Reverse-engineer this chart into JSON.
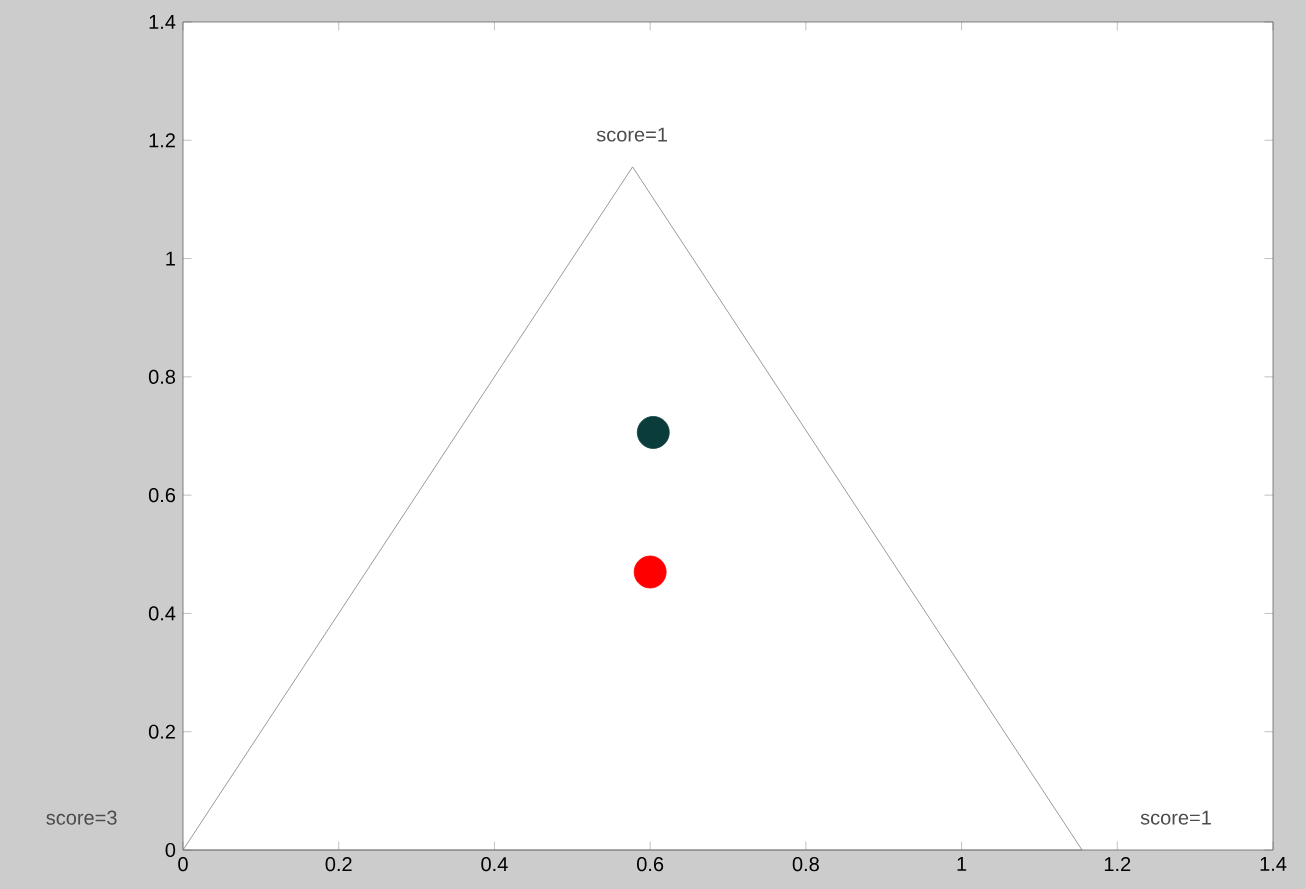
{
  "chart_data": {
    "type": "scatter",
    "series": [
      {
        "type": "line",
        "color": "#808080",
        "x": [
          0,
          0.5774
        ],
        "values": [
          0,
          1.155
        ],
        "marker": "none"
      },
      {
        "type": "line",
        "color": "#808080",
        "x": [
          0.5774,
          1.1547
        ],
        "values": [
          1.155,
          0
        ],
        "marker": "none"
      },
      {
        "type": "line",
        "color": "#808080",
        "x": [
          0,
          1.1547
        ],
        "values": [
          0,
          0
        ],
        "marker": "none"
      },
      {
        "type": "scatter",
        "color": "#0a3c3c",
        "x": [
          0.604
        ],
        "values": [
          0.706
        ],
        "marker": "circle"
      },
      {
        "type": "scatter",
        "color": "#ff0000",
        "x": [
          0.6
        ],
        "values": [
          0.47
        ],
        "marker": "circle"
      }
    ],
    "xlim": [
      0,
      1.4
    ],
    "ylim": [
      0,
      1.4
    ],
    "xticks": [
      0,
      0.2,
      0.4,
      0.6,
      0.8,
      1,
      1.2,
      1.4
    ],
    "yticks": [
      0,
      0.2,
      0.4,
      0.6,
      0.8,
      1,
      1.2,
      1.4
    ],
    "annotations": [
      "score=1",
      "score=1",
      "score=3"
    ]
  }
}
